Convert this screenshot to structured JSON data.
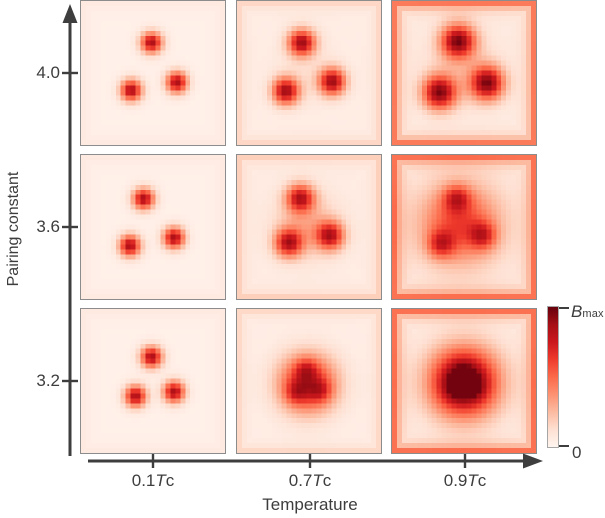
{
  "figure": {
    "background": "#ffffff",
    "text_color": "#3d3d3d",
    "axis_color": "#3e3e3e",
    "panel_border_color": "#8c8c8c"
  },
  "axes": {
    "y": {
      "label": "Pairing constant",
      "ticks": [
        "4.0",
        "3.6",
        "3.2"
      ]
    },
    "x": {
      "label": "Temperature",
      "ticks": [
        {
          "prefix": "0.1",
          "symbol": "T",
          "sub": "c"
        },
        {
          "prefix": "0.7",
          "symbol": "T",
          "sub": "c"
        },
        {
          "prefix": "0.9",
          "symbol": "T",
          "sub": "c"
        }
      ]
    },
    "colorbar": {
      "max_symbol": "B",
      "max_sub": "max",
      "min_label": "0"
    }
  },
  "chart_data": {
    "type": "heatmap",
    "title": "",
    "xlabel": "Temperature",
    "ylabel": "Pairing constant",
    "row_values": [
      4.0,
      3.6,
      3.2
    ],
    "col_values": [
      "0.1Tc",
      "0.7Tc",
      "0.9Tc"
    ],
    "value_scale": {
      "min_label": "0",
      "max_label": "Bmax"
    },
    "legend_position": "right-colorbar",
    "grid": false,
    "resolution": 29,
    "colormap_stops": [
      "#fff5f0",
      "#fee0d2",
      "#fcbba1",
      "#fc9272",
      "#fb6a4a",
      "#ef3b2c",
      "#cb181d",
      "#a50f15",
      "#67000d"
    ],
    "panels": [
      {
        "pairing": 4.0,
        "temperature": "0.1Tc",
        "background": 0.03,
        "edge_amp": 0.035,
        "sigma": 0.052,
        "peak": 0.82,
        "vortices": [
          [
            0.49,
            0.29
          ],
          [
            0.35,
            0.62
          ],
          [
            0.665,
            0.565
          ]
        ],
        "halo": null
      },
      {
        "pairing": 4.0,
        "temperature": "0.7Tc",
        "background": 0.045,
        "edge_amp": 0.11,
        "sigma": 0.065,
        "peak": 0.82,
        "vortices": [
          [
            0.45,
            0.29
          ],
          [
            0.34,
            0.625
          ],
          [
            0.66,
            0.56
          ]
        ],
        "halo": {
          "x": 0.48,
          "y": 0.48,
          "sigma": 0.16,
          "amp": 0.06
        }
      },
      {
        "pairing": 4.0,
        "temperature": "0.9Tc",
        "background": 0.05,
        "edge_amp": 0.4,
        "sigma": 0.082,
        "peak": 0.86,
        "vortices": [
          [
            0.46,
            0.28
          ],
          [
            0.33,
            0.635
          ],
          [
            0.66,
            0.57
          ]
        ],
        "halo": {
          "x": 0.48,
          "y": 0.46,
          "sigma": 0.18,
          "amp": 0.12
        }
      },
      {
        "pairing": 3.6,
        "temperature": "0.1Tc",
        "background": 0.03,
        "edge_amp": 0.035,
        "sigma": 0.052,
        "peak": 0.82,
        "vortices": [
          [
            0.435,
            0.305
          ],
          [
            0.34,
            0.63
          ],
          [
            0.645,
            0.575
          ]
        ],
        "halo": null
      },
      {
        "pairing": 3.6,
        "temperature": "0.7Tc",
        "background": 0.05,
        "edge_amp": 0.13,
        "sigma": 0.068,
        "peak": 0.72,
        "vortices": [
          [
            0.44,
            0.3
          ],
          [
            0.36,
            0.61
          ],
          [
            0.645,
            0.56
          ]
        ],
        "halo": {
          "x": 0.48,
          "y": 0.49,
          "sigma": 0.15,
          "amp": 0.22
        }
      },
      {
        "pairing": 3.6,
        "temperature": "0.9Tc",
        "background": 0.07,
        "edge_amp": 0.4,
        "sigma": 0.065,
        "peak": 0.42,
        "vortices": [
          [
            0.45,
            0.3
          ],
          [
            0.34,
            0.62
          ],
          [
            0.63,
            0.56
          ]
        ],
        "halo": {
          "x": 0.47,
          "y": 0.48,
          "sigma": 0.19,
          "amp": 0.55
        }
      },
      {
        "pairing": 3.2,
        "temperature": "0.1Tc",
        "background": 0.03,
        "edge_amp": 0.035,
        "sigma": 0.052,
        "peak": 0.82,
        "vortices": [
          [
            0.49,
            0.335
          ],
          [
            0.38,
            0.605
          ],
          [
            0.645,
            0.575
          ]
        ],
        "halo": null
      },
      {
        "pairing": 3.2,
        "temperature": "0.7Tc",
        "background": 0.04,
        "edge_amp": 0.11,
        "sigma": 0.055,
        "peak": 0.25,
        "vortices": [
          [
            0.48,
            0.42
          ],
          [
            0.41,
            0.58
          ],
          [
            0.58,
            0.57
          ]
        ],
        "halo": {
          "x": 0.49,
          "y": 0.52,
          "sigma": 0.14,
          "amp": 0.72
        }
      },
      {
        "pairing": 3.2,
        "temperature": "0.9Tc",
        "background": 0.055,
        "edge_amp": 0.42,
        "sigma": 0.06,
        "peak": 0.15,
        "vortices": [
          [
            0.49,
            0.45
          ],
          [
            0.44,
            0.555
          ],
          [
            0.565,
            0.545
          ]
        ],
        "halo": {
          "x": 0.5,
          "y": 0.51,
          "sigma": 0.165,
          "amp": 1.05
        }
      }
    ]
  }
}
